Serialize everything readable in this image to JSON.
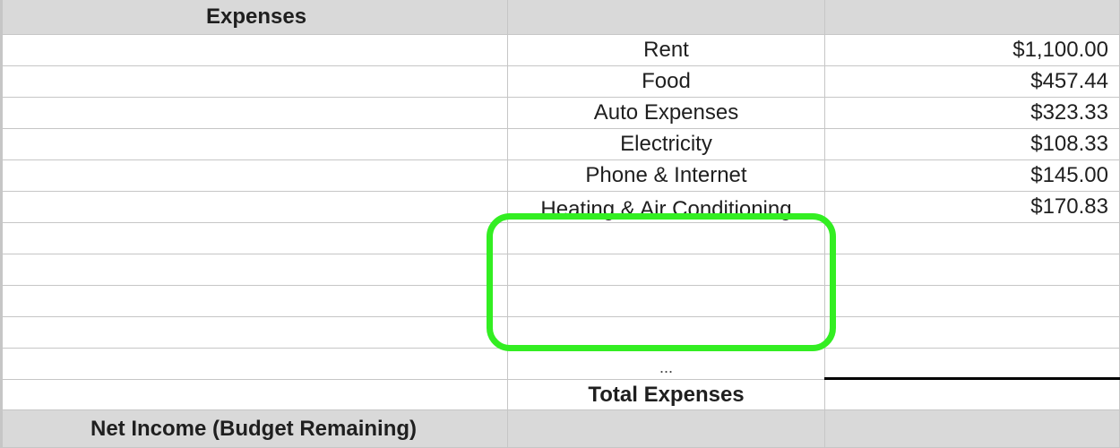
{
  "sheet": {
    "header_expenses": "Expenses",
    "expense_items": [
      {
        "label": "Rent",
        "amount": "$1,100.00"
      },
      {
        "label": "Food",
        "amount": "$457.44"
      },
      {
        "label": "Auto Expenses",
        "amount": "$323.33"
      },
      {
        "label": "Electricity",
        "amount": "$108.33"
      },
      {
        "label": "Phone & Internet",
        "amount": "$145.00"
      },
      {
        "label": "Heating & Air Conditioning",
        "amount": "$170.83"
      }
    ],
    "ellipsis": "...",
    "total_expenses_label": "Total Expenses",
    "net_income_label": "Net Income (Budget Remaining)"
  },
  "colors": {
    "highlight": "#33ee22",
    "section_header_bg": "#d9d9d9",
    "gridline": "#c6c6c6"
  }
}
